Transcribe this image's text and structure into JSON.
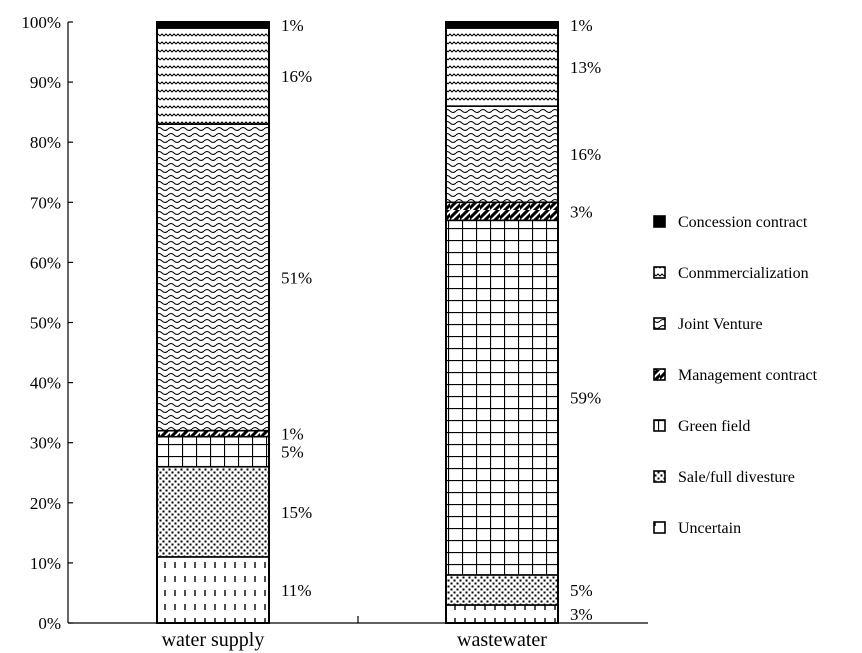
{
  "chart_data": {
    "type": "bar",
    "stacked": true,
    "categories": [
      "water supply",
      "wastewater"
    ],
    "ylim": [
      0,
      100
    ],
    "y_ticks": [
      "0%",
      "10%",
      "20%",
      "30%",
      "40%",
      "50%",
      "60%",
      "70%",
      "80%",
      "90%",
      "100%"
    ],
    "grid": false,
    "legend_position": "right",
    "series": [
      {
        "name": "Uncertain",
        "pattern": "dashes",
        "values": [
          11,
          3
        ],
        "labels": [
          "11%",
          "3%"
        ]
      },
      {
        "name": "Sale/full divesture",
        "pattern": "dots",
        "values": [
          15,
          5
        ],
        "labels": [
          "15%",
          "5%"
        ]
      },
      {
        "name": "Green field",
        "pattern": "grid",
        "values": [
          5,
          59
        ],
        "labels": [
          "5%",
          "59%"
        ]
      },
      {
        "name": "Management contract",
        "pattern": "diagonal",
        "values": [
          1,
          3
        ],
        "labels": [
          "1%",
          "3%"
        ]
      },
      {
        "name": "Joint Venture",
        "pattern": "wave-dense",
        "values": [
          51,
          16
        ],
        "labels": [
          "51%",
          "16%"
        ]
      },
      {
        "name": "Conmmercialization",
        "pattern": "zigzag",
        "values": [
          16,
          13
        ],
        "labels": [
          "16%",
          "13%"
        ]
      },
      {
        "name": "Concession contract",
        "pattern": "solid",
        "values": [
          1,
          1
        ],
        "labels": [
          "1%",
          "1%"
        ]
      }
    ],
    "legend_order": [
      "Concession contract",
      "Conmmercialization",
      "Joint Venture",
      "Management contract",
      "Green field",
      "Sale/full divesture",
      "Uncertain"
    ]
  }
}
